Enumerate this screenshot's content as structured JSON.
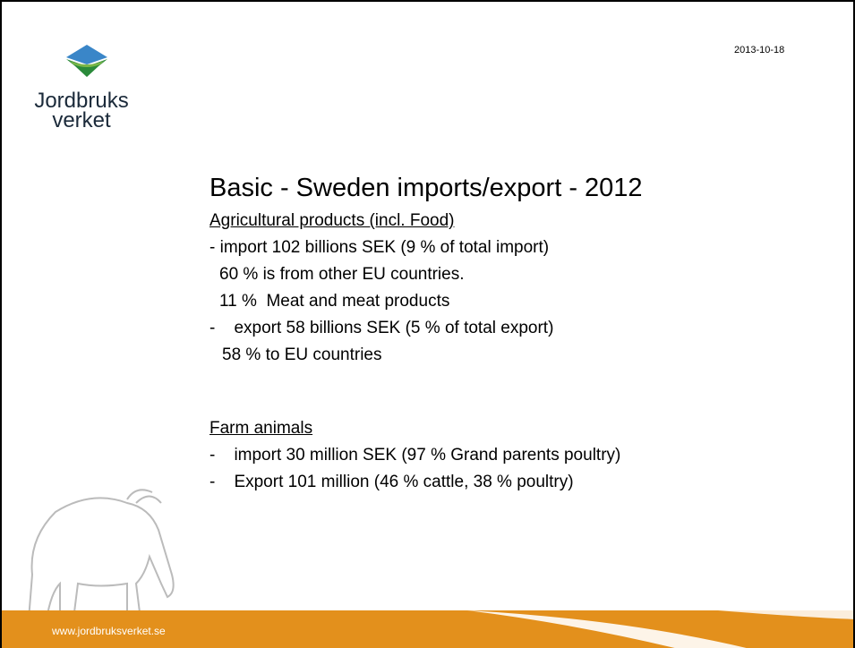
{
  "header": {
    "logo_line1": "Jordbruks",
    "logo_line2": "verket",
    "date": "2013-10-18"
  },
  "title": "Basic - Sweden imports/export - 2012",
  "body": {
    "lines": [
      "Agricultural products (incl. Food)",
      "- import 102 billions SEK (9 % of total import)",
      "60 % is from other EU countries.",
      "11 %  Meat and meat products",
      "-    export 58 billions SEK (5 % of total export)",
      "58 % to EU countries",
      "Farm animals",
      "-    import 30 million SEK (97 % Grand parents poultry)",
      "-    Export 101 million (46 % cattle, 38 % poultry)"
    ]
  },
  "footer": {
    "url": "www.jordbruksverket.se"
  }
}
